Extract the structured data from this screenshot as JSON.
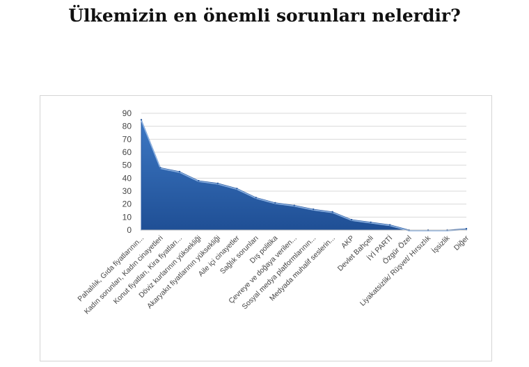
{
  "title": "Ülkemizin en önemli sorunları nelerdir?",
  "chart_data": {
    "type": "area",
    "title": "",
    "xlabel": "",
    "ylabel": "",
    "ylim": [
      0,
      90
    ],
    "yticks": [
      0,
      10,
      20,
      30,
      40,
      50,
      60,
      70,
      80,
      90
    ],
    "grid": true,
    "legend": "none",
    "color": "#2f67b1",
    "categories": [
      "Pahalılık, Gıda fiyatlarının...",
      "Kadın sorunları, Kadın cinayetleri",
      "Konut fiyatları, Kira fiyatları...",
      "Döviz kurlarının yüksekliği",
      "Akaryakıt fiyatlarının yüksekliği",
      "Aile içi cinayetler",
      "Sağlık sorunları",
      "Dış politika",
      "Çevreye ve doğaya verilen...",
      "Sosyal medya platformlarının...",
      "Medyada muhalif seslerin...",
      "AKP",
      "Devlet Bahçeli",
      "İYİ PARTİ",
      "Özgür Özel",
      "Liyakatsizlik/ Rüşvet/ Hırsızlık",
      "İşsizlik",
      "Diğer"
    ],
    "values": [
      85,
      48,
      45,
      38,
      36,
      32,
      25,
      21,
      19,
      16,
      14,
      8,
      6,
      4,
      0,
      0,
      0,
      1
    ]
  }
}
